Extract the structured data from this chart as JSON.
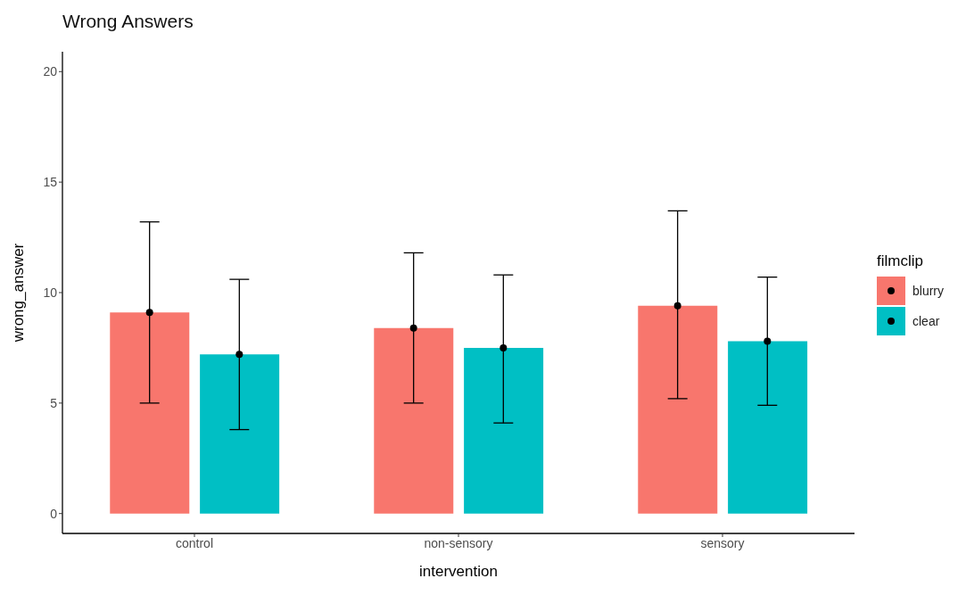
{
  "chart_data": {
    "type": "bar",
    "title": "Wrong Answers",
    "xlabel": "intervention",
    "ylabel": "wrong_answer",
    "legend_title": "filmclip",
    "categories": [
      "control",
      "non-sensory",
      "sensory"
    ],
    "series": [
      {
        "name": "blurry",
        "color": "#f8766d",
        "values": [
          9.1,
          8.4,
          9.4
        ]
      },
      {
        "name": "clear",
        "color": "#00bfc4",
        "values": [
          7.2,
          7.5,
          7.8
        ]
      },
      {
        "type": "scatter",
        "color": "#000000",
        "x": [
          "control",
          "non-sensory",
          "sensory"
        ],
        "values": [
          9.1,
          8.4,
          9.4
        ],
        "errors": [
          [
            5.0,
            13.2
          ],
          [
            5.0,
            11.8
          ],
          [
            5.2,
            13.7
          ]
        ]
      },
      {
        "type": "scatter",
        "color": "#000000",
        "x": [
          "control",
          "non-sensory",
          "sensory"
        ],
        "values": [
          7.2,
          7.5,
          7.8
        ],
        "errors": [
          [
            3.8,
            10.6
          ],
          [
            4.1,
            10.8
          ],
          [
            4.9,
            10.7
          ]
        ]
      }
    ],
    "ylim": [
      -0.9,
      20.9
    ],
    "yticks": [
      0,
      5,
      10,
      15,
      20
    ],
    "grid": false,
    "legend": "right",
    "marker": "circle"
  }
}
